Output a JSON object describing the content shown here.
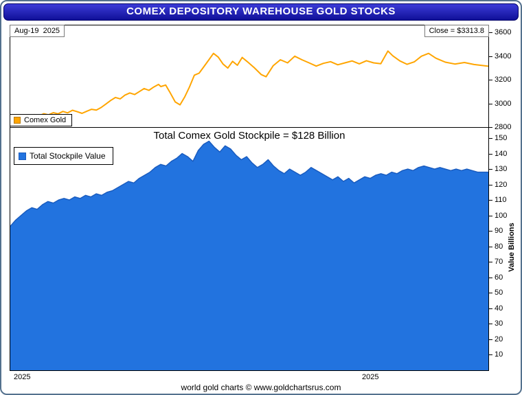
{
  "title": "COMEX DEPOSITORY WAREHOUSE GOLD STOCKS",
  "top_panel": {
    "date_label": "Aug-19  2025",
    "close_label": "Close = $3313.8",
    "legend": "Comex Gold"
  },
  "bottom_panel": {
    "title": "Total Comex Gold Stockpile = $128 Billion",
    "legend": "Total Stockpile Value",
    "y_axis_label": "Value Billions"
  },
  "x_axis": {
    "labels": [
      "2025",
      "2025"
    ]
  },
  "footer": "world gold charts © www.goldchartsrus.com",
  "colors": {
    "title_bar_top": "#3c3cd8",
    "title_bar_bottom": "#101098",
    "gold_line": "#FFA500",
    "gold_swatch_border": "#b87800",
    "area_fill": "#2273DF",
    "area_stroke": "#1a5cbf",
    "frame_border": "#54718e"
  },
  "chart_data": [
    {
      "type": "line",
      "title": "Comex Gold",
      "ylabel": "",
      "ylim": [
        2800,
        3600
      ],
      "y_ticks": [
        2800,
        3000,
        3200,
        3400,
        3600
      ],
      "close": 3313.8,
      "date": "Aug-19 2025",
      "legend_position": "bottom-left",
      "color": "#FFA500",
      "points": [
        [
          0.0,
          2822
        ],
        [
          0.01,
          2845
        ],
        [
          0.02,
          2858
        ],
        [
          0.03,
          2850
        ],
        [
          0.04,
          2872
        ],
        [
          0.05,
          2905
        ],
        [
          0.06,
          2895
        ],
        [
          0.07,
          2913
        ],
        [
          0.08,
          2903
        ],
        [
          0.09,
          2922
        ],
        [
          0.1,
          2912
        ],
        [
          0.11,
          2932
        ],
        [
          0.12,
          2920
        ],
        [
          0.13,
          2942
        ],
        [
          0.14,
          2930
        ],
        [
          0.15,
          2916
        ],
        [
          0.16,
          2934
        ],
        [
          0.17,
          2950
        ],
        [
          0.18,
          2944
        ],
        [
          0.19,
          2965
        ],
        [
          0.2,
          2995
        ],
        [
          0.21,
          3025
        ],
        [
          0.22,
          3050
        ],
        [
          0.23,
          3038
        ],
        [
          0.24,
          3070
        ],
        [
          0.25,
          3088
        ],
        [
          0.26,
          3075
        ],
        [
          0.27,
          3100
        ],
        [
          0.28,
          3125
        ],
        [
          0.29,
          3110
        ],
        [
          0.3,
          3138
        ],
        [
          0.31,
          3160
        ],
        [
          0.315,
          3142
        ],
        [
          0.325,
          3155
        ],
        [
          0.335,
          3085
        ],
        [
          0.345,
          3012
        ],
        [
          0.355,
          2988
        ],
        [
          0.365,
          3055
        ],
        [
          0.375,
          3140
        ],
        [
          0.385,
          3238
        ],
        [
          0.395,
          3255
        ],
        [
          0.405,
          3310
        ],
        [
          0.415,
          3365
        ],
        [
          0.425,
          3422
        ],
        [
          0.435,
          3390
        ],
        [
          0.445,
          3332
        ],
        [
          0.455,
          3298
        ],
        [
          0.465,
          3355
        ],
        [
          0.475,
          3322
        ],
        [
          0.485,
          3388
        ],
        [
          0.495,
          3355
        ],
        [
          0.51,
          3302
        ],
        [
          0.525,
          3243
        ],
        [
          0.535,
          3225
        ],
        [
          0.55,
          3318
        ],
        [
          0.565,
          3368
        ],
        [
          0.58,
          3342
        ],
        [
          0.595,
          3398
        ],
        [
          0.61,
          3368
        ],
        [
          0.625,
          3342
        ],
        [
          0.64,
          3315
        ],
        [
          0.655,
          3338
        ],
        [
          0.67,
          3352
        ],
        [
          0.685,
          3326
        ],
        [
          0.7,
          3342
        ],
        [
          0.715,
          3358
        ],
        [
          0.73,
          3334
        ],
        [
          0.745,
          3360
        ],
        [
          0.76,
          3342
        ],
        [
          0.775,
          3335
        ],
        [
          0.79,
          3442
        ],
        [
          0.8,
          3402
        ],
        [
          0.815,
          3358
        ],
        [
          0.83,
          3330
        ],
        [
          0.845,
          3350
        ],
        [
          0.86,
          3398
        ],
        [
          0.875,
          3422
        ],
        [
          0.89,
          3382
        ],
        [
          0.91,
          3348
        ],
        [
          0.93,
          3332
        ],
        [
          0.95,
          3345
        ],
        [
          0.97,
          3328
        ],
        [
          1.0,
          3313.8
        ]
      ]
    },
    {
      "type": "area",
      "title": "Total Comex Gold Stockpile = $128 Billion",
      "ylabel": "Value Billions",
      "ylim": [
        0,
        156
      ],
      "y_ticks": [
        10,
        20,
        30,
        40,
        50,
        60,
        70,
        80,
        90,
        100,
        110,
        120,
        130,
        140,
        150
      ],
      "latest": 128,
      "unit": "USD Billions",
      "legend_position": "top-left",
      "color": "#2273DF",
      "stroke": "#1a5cbf",
      "values": [
        93,
        97,
        100,
        103,
        105,
        104,
        107,
        109,
        108,
        110,
        111,
        110,
        112,
        111,
        113,
        112,
        114,
        113,
        115,
        116,
        118,
        120,
        122,
        121,
        124,
        126,
        128,
        131,
        133,
        132,
        135,
        137,
        140,
        138,
        135,
        142,
        146,
        148,
        144,
        141,
        145,
        143,
        139,
        136,
        138,
        134,
        131,
        133,
        136,
        132,
        129,
        127,
        130,
        128,
        126,
        128,
        131,
        129,
        127,
        125,
        123,
        125,
        122,
        124,
        121,
        123,
        125,
        124,
        126,
        127,
        126,
        128,
        127,
        129,
        130,
        129,
        131,
        132,
        131,
        130,
        131,
        130,
        129,
        130,
        129,
        130,
        129,
        128,
        128,
        128
      ]
    }
  ]
}
